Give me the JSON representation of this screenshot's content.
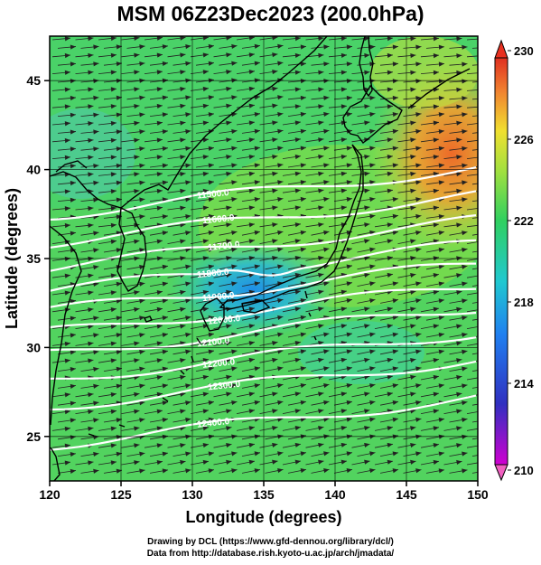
{
  "title": "MSM 06Z23Dec2023 (200.0hPa)",
  "x_axis": {
    "label": "Longitude (degrees)",
    "ticks": [
      "120",
      "125",
      "130",
      "135",
      "140",
      "145",
      "150"
    ]
  },
  "y_axis": {
    "label": "Latitude  (degrees)",
    "ticks": [
      "25",
      "30",
      "35",
      "40",
      "45"
    ]
  },
  "colorbar": {
    "labels": [
      "230",
      "226",
      "222",
      "218",
      "214",
      "210"
    ]
  },
  "contours": {
    "labels": [
      "11500.0",
      "11600.0",
      "11700.0",
      "11800.0",
      "11900.0",
      "12000.0",
      "12100.0",
      "12200.0",
      "12300.0",
      "12400.0"
    ],
    "color": "#ffffff"
  },
  "credits": {
    "line1": "Drawing by DCL (https://www.gfd-dennou.org/library/dcl/)",
    "line2": "Data from http://database.rish.kyoto-u.ac.jp/arch/jmadata/"
  },
  "colors": {
    "cold": "#3050e0",
    "mid": "#40d060",
    "warm": "#f08030",
    "coast": "#000000"
  },
  "chart_data": {
    "type": "heatmap",
    "title": "MSM 06Z23Dec2023 (200.0hPa)",
    "xlabel": "Longitude (degrees)",
    "ylabel": "Latitude  (degrees)",
    "xlim": [
      120,
      150
    ],
    "ylim": [
      22.5,
      47.5
    ],
    "colorbar_range": [
      210,
      230
    ],
    "contour_levels": [
      11500,
      11600,
      11700,
      11800,
      11900,
      12000,
      12100,
      12200,
      12300,
      12400
    ],
    "vectors": "wind arrows, westerly"
  }
}
